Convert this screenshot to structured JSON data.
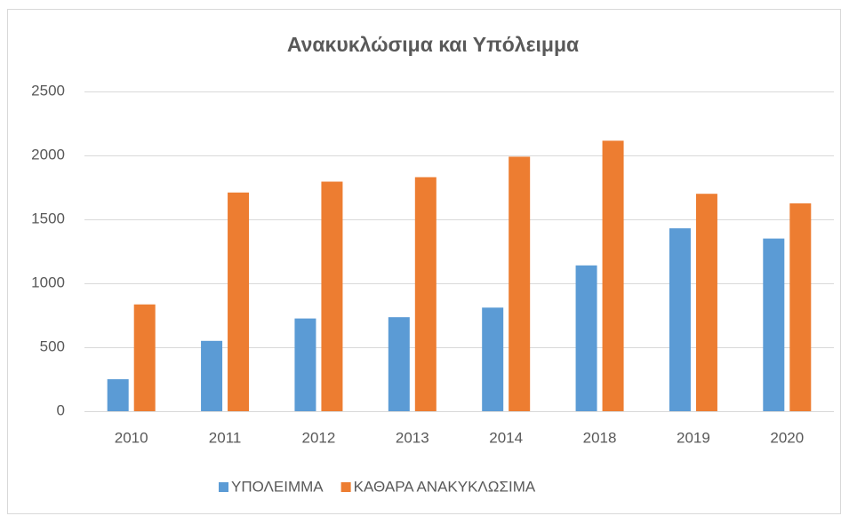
{
  "chart_data": {
    "type": "bar",
    "title": "Ανακυκλώσιμα και Υπόλειμμα",
    "categories": [
      "2010",
      "2011",
      "2012",
      "2013",
      "2014",
      "2018",
      "2019",
      "2020"
    ],
    "series": [
      {
        "name": "ΥΠΟΛΕΙΜΜΑ",
        "color": "#5b9bd5",
        "values": [
          250,
          550,
          725,
          735,
          810,
          1140,
          1430,
          1350
        ]
      },
      {
        "name": "ΚΑΘΑΡΑ ΑΝΑΚΥΚΛΩΣΙΜΑ",
        "color": "#ed7d31",
        "values": [
          835,
          1710,
          1795,
          1830,
          1990,
          2115,
          1700,
          1625
        ]
      }
    ],
    "ylim": [
      0,
      2500
    ],
    "yticks": [
      0,
      500,
      1000,
      1500,
      2000,
      2500
    ],
    "grid": true,
    "legend": "bottom"
  }
}
